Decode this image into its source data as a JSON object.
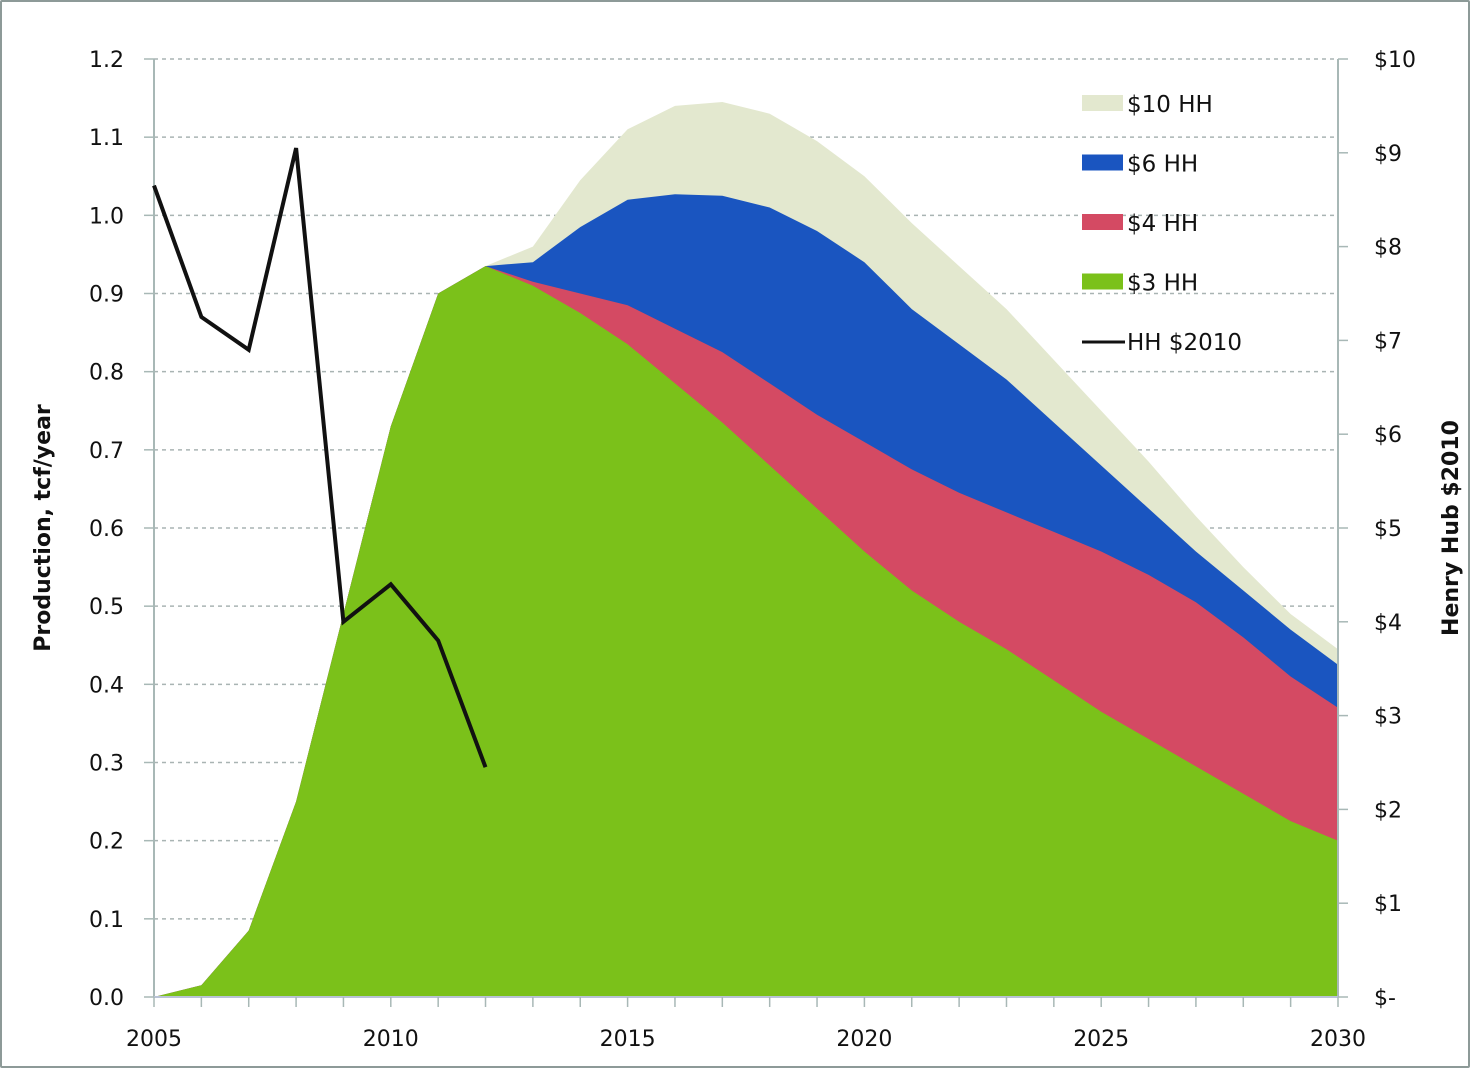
{
  "chart_data": {
    "type": "area",
    "title": "",
    "xlabel": "",
    "ylabel": "Production, tcf/year",
    "y2label": "Henry Hub $2010",
    "xlim": [
      2005,
      2030
    ],
    "ylim": [
      0,
      1.2
    ],
    "y2lim": [
      0,
      10
    ],
    "grid": true,
    "legend_position": "top-right",
    "x_ticks": [
      "2005",
      "2010",
      "2015",
      "2020",
      "2025",
      "2030"
    ],
    "x_tick_values": [
      2005,
      2010,
      2015,
      2020,
      2025,
      2030
    ],
    "y_ticks": [
      "0.0",
      "0.1",
      "0.2",
      "0.3",
      "0.4",
      "0.5",
      "0.6",
      "0.7",
      "0.8",
      "0.9",
      "1.0",
      "1.1",
      "1.2"
    ],
    "y_tick_values": [
      0,
      0.1,
      0.2,
      0.3,
      0.4,
      0.5,
      0.6,
      0.7,
      0.8,
      0.9,
      1.0,
      1.1,
      1.2
    ],
    "y2_ticks": [
      "$-",
      "$1",
      "$2",
      "$3",
      "$4",
      "$5",
      "$6",
      "$7",
      "$8",
      "$9",
      "$10"
    ],
    "y2_tick_values": [
      0,
      1,
      2,
      3,
      4,
      5,
      6,
      7,
      8,
      9,
      10
    ],
    "x": [
      2005,
      2006,
      2007,
      2008,
      2009,
      2010,
      2011,
      2012,
      2013,
      2014,
      2015,
      2016,
      2017,
      2018,
      2019,
      2020,
      2021,
      2022,
      2023,
      2024,
      2025,
      2026,
      2027,
      2028,
      2029,
      2030
    ],
    "stack_note": "values are cumulative stack tops (tcf/year)",
    "series": [
      {
        "name": "$10 HH",
        "color": "#e3e8cf",
        "axis": "left",
        "kind": "area",
        "values": [
          0.0,
          0.015,
          0.085,
          0.25,
          0.49,
          0.73,
          0.9,
          0.935,
          0.96,
          1.045,
          1.11,
          1.14,
          1.145,
          1.13,
          1.095,
          1.05,
          0.99,
          0.935,
          0.88,
          0.815,
          0.75,
          0.685,
          0.615,
          0.55,
          0.49,
          0.445
        ]
      },
      {
        "name": "$6 HH",
        "color": "#1a55c0",
        "axis": "left",
        "kind": "area",
        "values": [
          0.0,
          0.015,
          0.085,
          0.25,
          0.49,
          0.73,
          0.9,
          0.935,
          0.94,
          0.985,
          1.02,
          1.027,
          1.025,
          1.01,
          0.98,
          0.94,
          0.88,
          0.835,
          0.79,
          0.735,
          0.68,
          0.625,
          0.57,
          0.52,
          0.47,
          0.425
        ]
      },
      {
        "name": "$4 HH",
        "color": "#d44a63",
        "axis": "left",
        "kind": "area",
        "values": [
          0.0,
          0.015,
          0.085,
          0.25,
          0.49,
          0.73,
          0.9,
          0.935,
          0.915,
          0.9,
          0.885,
          0.855,
          0.825,
          0.785,
          0.745,
          0.71,
          0.675,
          0.645,
          0.62,
          0.595,
          0.57,
          0.54,
          0.505,
          0.46,
          0.41,
          0.37
        ]
      },
      {
        "name": "$3 HH",
        "color": "#7bc11a",
        "axis": "left",
        "kind": "area",
        "values": [
          0.0,
          0.015,
          0.085,
          0.25,
          0.49,
          0.73,
          0.9,
          0.935,
          0.91,
          0.875,
          0.835,
          0.785,
          0.735,
          0.68,
          0.625,
          0.57,
          0.52,
          0.48,
          0.445,
          0.405,
          0.365,
          0.33,
          0.295,
          0.26,
          0.225,
          0.2
        ]
      },
      {
        "name": "HH $2010",
        "color": "#111111",
        "axis": "right",
        "kind": "line",
        "x": [
          2005,
          2006,
          2007,
          2008,
          2009,
          2010,
          2011,
          2012
        ],
        "values": [
          8.65,
          7.25,
          6.9,
          9.05,
          4.0,
          4.4,
          3.8,
          2.45
        ]
      }
    ],
    "legend": [
      {
        "label": "$10 HH",
        "color": "#e3e8cf",
        "kind": "area"
      },
      {
        "label": "$6 HH",
        "color": "#1a55c0",
        "kind": "area"
      },
      {
        "label": "$4 HH",
        "color": "#d44a63",
        "kind": "area"
      },
      {
        "label": "$3 HH",
        "color": "#7bc11a",
        "kind": "area"
      },
      {
        "label": "HH $2010",
        "color": "#111111",
        "kind": "line"
      }
    ]
  }
}
